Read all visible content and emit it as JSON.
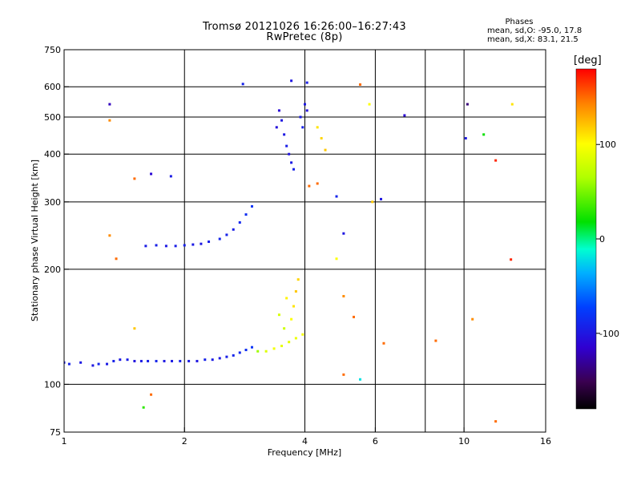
{
  "header": {
    "title": "Tromsø 20121026 16:26:00–16:27:43",
    "subtitle": "RwPretec (8p)"
  },
  "phase_stats": {
    "heading": "Phases",
    "o_line": "mean, sd,O: -95.0, 17.8",
    "x_line": "mean, sd,X: 83.1, 21.5"
  },
  "colorbar": {
    "unit": "[deg]",
    "range": [
      -180,
      180
    ],
    "ticks": [
      {
        "value": 100,
        "label": "100"
      },
      {
        "value": 0,
        "label": "0"
      },
      {
        "value": -100,
        "label": "-100"
      }
    ]
  },
  "chart_data": {
    "type": "scatter",
    "title": "Tromsø 20121026 16:26:00–16:27:43",
    "subtitle": "RwPretec (8p)",
    "xlabel": "Frequency [MHz]",
    "ylabel": "Stationary phase Virtual Height [km]",
    "x_scale": "log",
    "y_scale": "log",
    "xlim": [
      1,
      16
    ],
    "ylim": [
      75,
      750
    ],
    "x_ticks": [
      1,
      2,
      4,
      6,
      10,
      16
    ],
    "y_ticks": [
      75,
      100,
      200,
      300,
      400,
      500,
      600,
      750
    ],
    "x_gridlines": [
      2,
      4,
      6,
      8,
      10
    ],
    "y_gridlines": [
      100,
      200,
      300,
      400,
      500,
      600
    ],
    "color_by": "phase [deg]",
    "points": [
      [
        1.0,
        114,
        -95
      ],
      [
        1.03,
        113,
        -92
      ],
      [
        1.1,
        114,
        -98
      ],
      [
        1.18,
        112,
        -100
      ],
      [
        1.22,
        113,
        -90
      ],
      [
        1.28,
        113,
        -97
      ],
      [
        1.33,
        115,
        -93
      ],
      [
        1.38,
        116,
        -99
      ],
      [
        1.44,
        116,
        -95
      ],
      [
        1.5,
        115,
        -102
      ],
      [
        1.56,
        115,
        -96
      ],
      [
        1.62,
        115,
        -94
      ],
      [
        1.7,
        115,
        -91
      ],
      [
        1.78,
        115,
        -99
      ],
      [
        1.86,
        115,
        -97
      ],
      [
        1.95,
        115,
        -93
      ],
      [
        2.05,
        115,
        -96
      ],
      [
        2.15,
        115,
        -100
      ],
      [
        2.25,
        116,
        -92
      ],
      [
        2.35,
        116,
        -96
      ],
      [
        2.45,
        117,
        -98
      ],
      [
        2.55,
        118,
        -94
      ],
      [
        2.65,
        119,
        -91
      ],
      [
        2.75,
        121,
        -88
      ],
      [
        2.85,
        123,
        -85
      ],
      [
        2.95,
        125,
        -80
      ],
      [
        3.05,
        122,
        60
      ],
      [
        3.2,
        122,
        85
      ],
      [
        3.35,
        124,
        95
      ],
      [
        3.5,
        126,
        90
      ],
      [
        3.65,
        129,
        88
      ],
      [
        3.8,
        132,
        92
      ],
      [
        3.95,
        135,
        96
      ],
      [
        3.55,
        140,
        78
      ],
      [
        3.7,
        148,
        100
      ],
      [
        3.75,
        160,
        110
      ],
      [
        3.8,
        175,
        120
      ],
      [
        3.85,
        188,
        115
      ],
      [
        3.6,
        168,
        105
      ],
      [
        3.45,
        152,
        82
      ],
      [
        1.6,
        230,
        -96
      ],
      [
        1.7,
        231,
        -94
      ],
      [
        1.8,
        230,
        -98
      ],
      [
        1.9,
        230,
        -95
      ],
      [
        2.0,
        231,
        -93
      ],
      [
        2.1,
        232,
        -97
      ],
      [
        2.2,
        233,
        -99
      ],
      [
        2.3,
        236,
        -94
      ],
      [
        2.45,
        240,
        -90
      ],
      [
        2.55,
        246,
        -92
      ],
      [
        2.65,
        254,
        -95
      ],
      [
        2.75,
        265,
        -88
      ],
      [
        2.85,
        278,
        -85
      ],
      [
        2.95,
        292,
        -80
      ],
      [
        3.4,
        470,
        -105
      ],
      [
        3.5,
        490,
        -100
      ],
      [
        3.45,
        520,
        -110
      ],
      [
        3.55,
        450,
        -98
      ],
      [
        3.6,
        420,
        -95
      ],
      [
        3.65,
        400,
        -102
      ],
      [
        3.7,
        380,
        -97
      ],
      [
        3.75,
        365,
        -92
      ],
      [
        3.9,
        500,
        -96
      ],
      [
        3.95,
        470,
        -93
      ],
      [
        4.0,
        540,
        -99
      ],
      [
        4.05,
        520,
        -104
      ],
      [
        4.3,
        470,
        110
      ],
      [
        4.4,
        440,
        115
      ],
      [
        4.5,
        410,
        120
      ],
      [
        1.3,
        540,
        -120
      ],
      [
        1.3,
        490,
        140
      ],
      [
        1.85,
        350,
        -96
      ],
      [
        1.65,
        355,
        -110
      ],
      [
        2.8,
        610,
        -92
      ],
      [
        3.7,
        622,
        -100
      ],
      [
        4.05,
        615,
        -95
      ],
      [
        5.5,
        608,
        150
      ],
      [
        5.8,
        540,
        100
      ],
      [
        6.2,
        305,
        -100
      ],
      [
        7.1,
        505,
        -110
      ],
      [
        10.2,
        540,
        -140
      ],
      [
        10.1,
        440,
        -98
      ],
      [
        11.2,
        450,
        20
      ],
      [
        12.0,
        385,
        170
      ],
      [
        13.2,
        540,
        110
      ],
      [
        13.1,
        212,
        170
      ],
      [
        12.0,
        80,
        150
      ],
      [
        10.5,
        148,
        140
      ],
      [
        8.5,
        130,
        150
      ],
      [
        6.3,
        128,
        150
      ],
      [
        5.5,
        103,
        -20
      ],
      [
        5.0,
        106,
        150
      ],
      [
        1.58,
        87,
        30
      ],
      [
        1.65,
        94,
        150
      ],
      [
        1.5,
        140,
        120
      ],
      [
        1.3,
        245,
        140
      ],
      [
        1.35,
        213,
        150
      ],
      [
        1.5,
        345,
        150
      ],
      [
        4.1,
        330,
        150
      ],
      [
        4.3,
        335,
        150
      ],
      [
        5.9,
        300,
        120
      ],
      [
        4.8,
        310,
        -90
      ],
      [
        5.0,
        248,
        -100
      ],
      [
        4.8,
        213,
        100
      ],
      [
        5.0,
        170,
        140
      ],
      [
        5.3,
        150,
        150
      ]
    ],
    "scatter_cloud": {
      "description_omitted": true
    }
  }
}
